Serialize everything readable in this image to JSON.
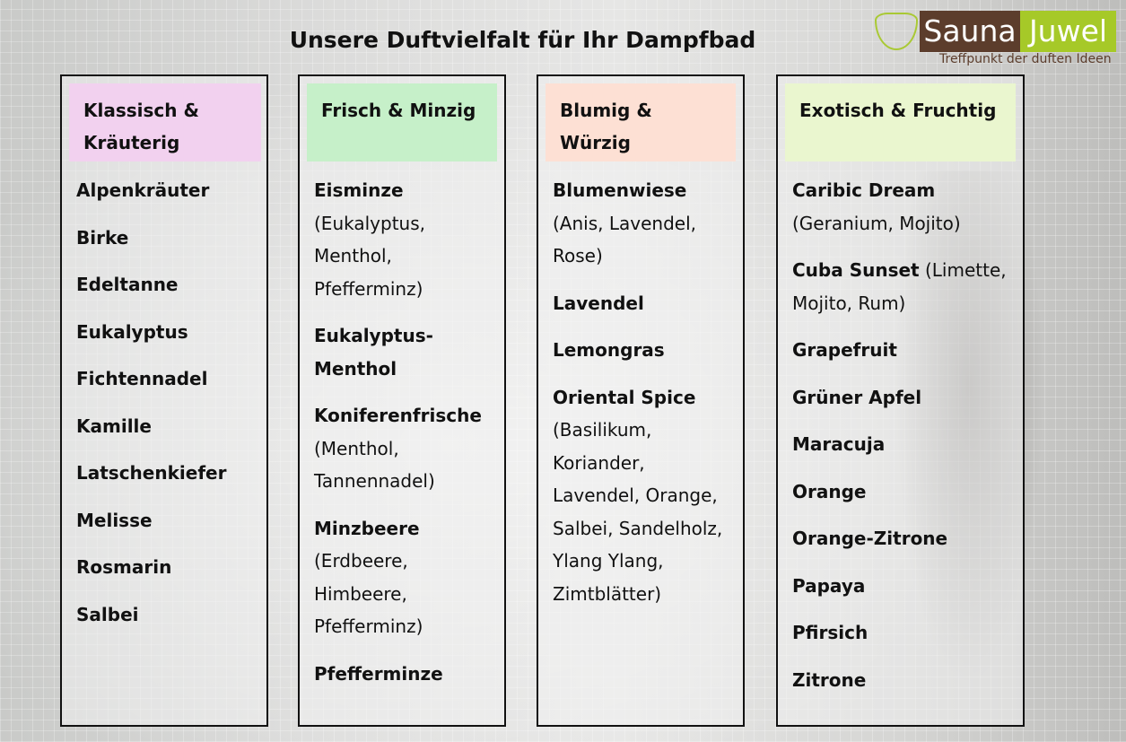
{
  "title": "Unsere Duftvielfalt für Ihr Dampfbad",
  "logo": {
    "part1": "Sauna",
    "part2": "Juwel",
    "tagline": "Treffpunkt der duften Ideen"
  },
  "colors": {
    "pink": "#f2d1ef",
    "green": "#c6f0c9",
    "peach": "#fde0d4",
    "lime": "#eaf6cf",
    "brand_brown": "#5c3d2c",
    "brand_green": "#a6c928"
  },
  "columns": [
    {
      "header": "Klassisch & Kräuterig",
      "items": [
        {
          "name": "Alpenkräuter"
        },
        {
          "name": "Birke"
        },
        {
          "name": "Edeltanne"
        },
        {
          "name": "Eukalyptus"
        },
        {
          "name": "Fichtennadel"
        },
        {
          "name": "Kamille"
        },
        {
          "name": "Latschenkiefer"
        },
        {
          "name": "Melisse"
        },
        {
          "name": "Rosmarin"
        },
        {
          "name": "Salbei"
        }
      ]
    },
    {
      "header": "Frisch & Minzig",
      "items": [
        {
          "name": "Eisminze",
          "detail": "(Eukalyptus, Menthol, Pfefferminz)"
        },
        {
          "name": "Eukalyptus-Menthol"
        },
        {
          "name": "Koniferenfrische",
          "detail": "(Menthol, Tannennadel)"
        },
        {
          "name": "Minzbeere",
          "detail": "(Erdbeere, Himbeere, Pfefferminz)"
        },
        {
          "name": "Pfefferminze"
        }
      ]
    },
    {
      "header": "Blumig & Würzig",
      "items": [
        {
          "name": "Blumenwiese",
          "detail": "(Anis, Lavendel, Rose)"
        },
        {
          "name": "Lavendel"
        },
        {
          "name": "Lemongras"
        },
        {
          "name": "Oriental Spice",
          "detail": "(Basilikum, Koriander, Lavendel, Orange, Salbei, Sandelholz, Ylang Ylang, Zimtblätter)"
        }
      ]
    },
    {
      "header": "Exotisch & Fruchtig",
      "items": [
        {
          "name": "Caribic Dream",
          "detail": "(Geranium, Mojito)"
        },
        {
          "name": "Cuba Sunset",
          "detail": "(Limette, Mojito, Rum)"
        },
        {
          "name": "Grapefruit"
        },
        {
          "name": "Grüner Apfel"
        },
        {
          "name": "Maracuja"
        },
        {
          "name": "Orange"
        },
        {
          "name": "Orange-Zitrone"
        },
        {
          "name": "Papaya"
        },
        {
          "name": "Pfirsich"
        },
        {
          "name": "Zitrone"
        }
      ]
    }
  ]
}
